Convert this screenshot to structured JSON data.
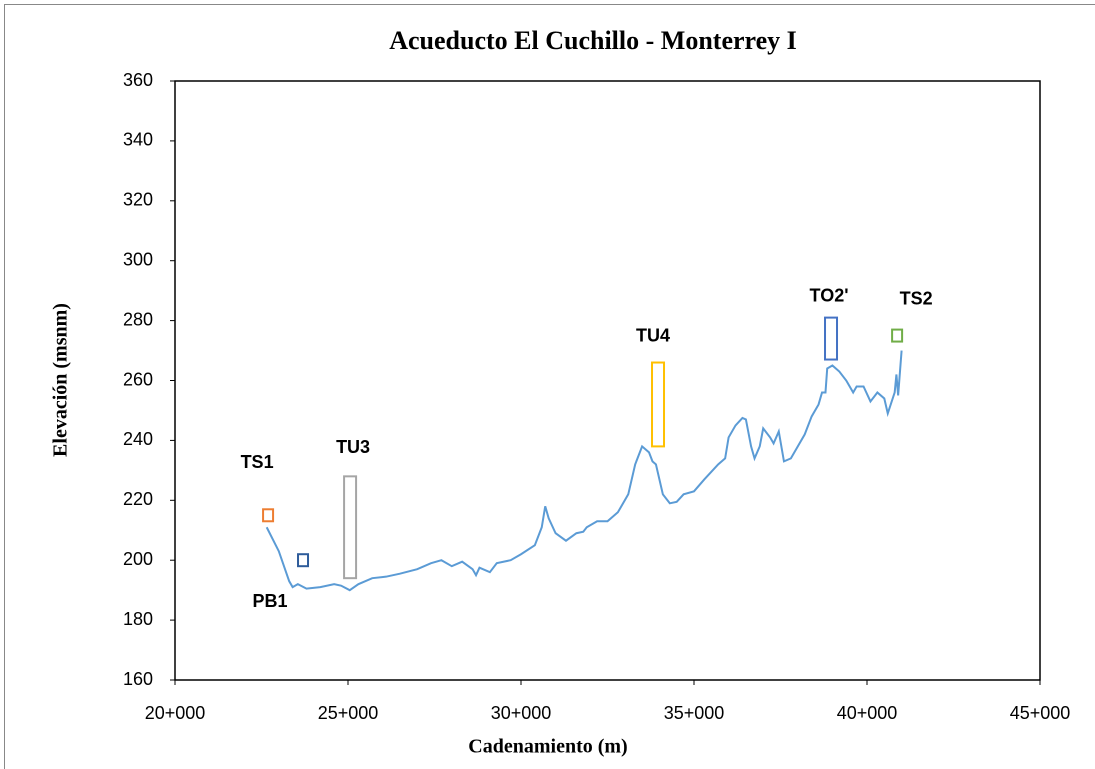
{
  "chart_data": {
    "type": "line",
    "title": "Acueducto El Cuchillo - Monterrey I",
    "x_label": "Cadenamiento (m)",
    "y_label": "Elevación (msnm)",
    "xlim": [
      20000,
      45000
    ],
    "xticks": [
      {
        "value": 20000,
        "label": "20+000"
      },
      {
        "value": 25000,
        "label": "25+000"
      },
      {
        "value": 30000,
        "label": "30+000"
      },
      {
        "value": 35000,
        "label": "35+000"
      },
      {
        "value": 40000,
        "label": "40+000"
      },
      {
        "value": 45000,
        "label": "45+000"
      }
    ],
    "ylim": [
      160,
      360
    ],
    "yticks": [
      160,
      180,
      200,
      220,
      240,
      260,
      280,
      300,
      320,
      340,
      360
    ],
    "series": [
      {
        "color": "#5b9bd5",
        "x": [
          22650,
          23000,
          23300,
          23400,
          23550,
          23800,
          24200,
          24600,
          24800,
          25050,
          25300,
          25700,
          26100,
          26500,
          27000,
          27400,
          27700,
          28000,
          28300,
          28600,
          28700,
          28800,
          29100,
          29300,
          29700,
          30000,
          30400,
          30600,
          30700,
          30800,
          31000,
          31300,
          31600,
          31800,
          31900,
          32200,
          32500,
          32800,
          33100,
          33300,
          33500,
          33700,
          33800,
          33900,
          34100,
          34300,
          34500,
          34700,
          35000,
          35300,
          35700,
          35900,
          36000,
          36200,
          36400,
          36500,
          36650,
          36750,
          36900,
          37000,
          37200,
          37300,
          37450,
          37600,
          37800,
          38000,
          38200,
          38400,
          38600,
          38700,
          38800,
          38850,
          39000,
          39200,
          39400,
          39600,
          39700,
          39900,
          40100,
          40300,
          40500,
          40600,
          40800,
          40850,
          40900,
          41000
        ],
        "values": [
          211,
          203,
          193,
          191,
          192,
          190.5,
          191,
          192,
          191.5,
          190,
          192,
          194,
          194.5,
          195.5,
          197,
          199,
          200,
          198,
          199.5,
          197,
          195,
          197.5,
          196,
          199,
          200,
          202,
          205,
          211,
          218,
          214,
          209,
          206.5,
          209,
          209.5,
          211,
          213,
          213,
          216,
          222,
          232,
          238,
          236,
          233,
          232,
          222,
          219,
          219.5,
          222,
          223,
          227,
          232,
          234,
          241,
          245,
          247.5,
          247,
          238,
          234,
          238,
          244,
          241,
          239,
          243,
          233,
          234,
          238,
          242,
          248,
          252,
          256,
          256,
          264,
          265,
          263,
          260,
          256,
          258,
          258,
          253,
          256,
          254,
          249,
          256,
          262,
          255,
          270
        ]
      }
    ],
    "annotations": [
      {
        "label": "TS1",
        "x": 22690,
        "y": [
          213,
          217
        ],
        "color": "#ed7d31"
      },
      {
        "label": "PB1",
        "x": 23700,
        "y": [
          198,
          202
        ],
        "color": "#2e5c9a"
      },
      {
        "label": "TU3",
        "x": 25060,
        "y": [
          194,
          228
        ],
        "color": "#a5a5a5"
      },
      {
        "label": "TU4",
        "x": 33960,
        "y": [
          238,
          266
        ],
        "color": "#ffc000"
      },
      {
        "label": "TO2'",
        "x": 38960,
        "y": [
          267,
          281
        ],
        "color": "#4472c4"
      },
      {
        "label": "TS2",
        "x": 40870,
        "y": [
          273,
          277
        ],
        "color": "#70ad47"
      }
    ]
  }
}
